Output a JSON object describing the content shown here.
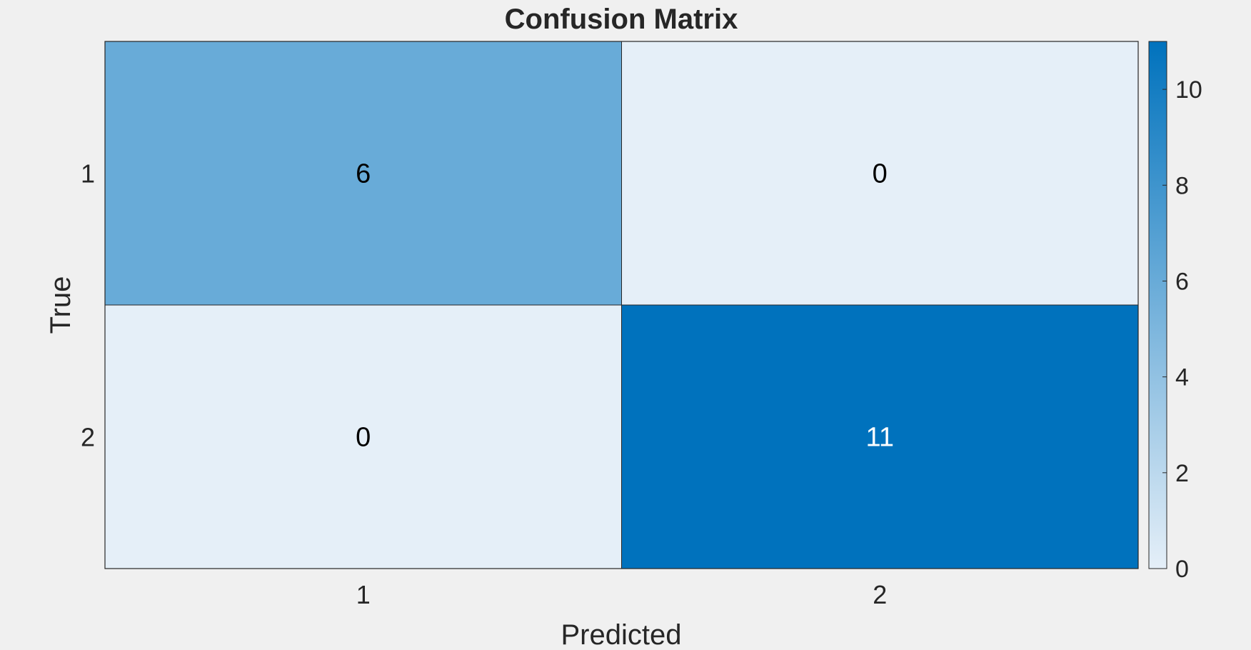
{
  "chart_data": {
    "type": "heatmap",
    "title": "Confusion Matrix",
    "xlabel": "Predicted",
    "ylabel": "True",
    "x_categories": [
      "1",
      "2"
    ],
    "y_categories": [
      "1",
      "2"
    ],
    "values": [
      [
        6,
        0
      ],
      [
        0,
        11
      ]
    ],
    "colorbar": {
      "range": [
        0,
        11
      ],
      "ticks": [
        0,
        2,
        4,
        6,
        8,
        10
      ],
      "color_low": "#e5eff8",
      "color_high": "#0072bd"
    },
    "grid": false,
    "legend": "none"
  }
}
